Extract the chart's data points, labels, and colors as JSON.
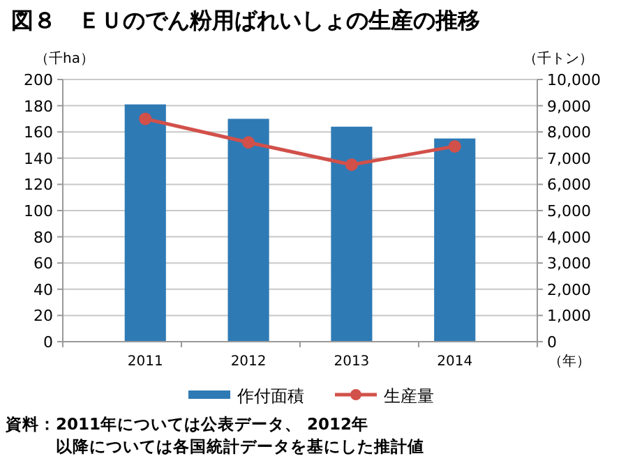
{
  "chart_data": {
    "type": "bar",
    "title": "図８　ＥＵのでん粉用ばれいしょの生産の推移",
    "xlabel": "（年）",
    "ylabel": "（千ha）",
    "y2label": "（千トン）",
    "categories": [
      "2011",
      "2012",
      "2013",
      "2014"
    ],
    "series": [
      {
        "name": "作付面積",
        "color": "#2e7ab5",
        "values": [
          181,
          170,
          164,
          155
        ]
      },
      {
        "name": "生産量",
        "type": "line",
        "axis": "y2",
        "color": "#d2504a",
        "marker": "circle",
        "values": [
          8500,
          7600,
          6750,
          7450
        ]
      }
    ],
    "ylim": [
      0,
      200
    ],
    "yticks": [
      0,
      20,
      40,
      60,
      80,
      100,
      120,
      140,
      160,
      180,
      200
    ],
    "y2lim": [
      0,
      10000
    ],
    "y2ticks": [
      {
        "value": 0,
        "label": "0"
      },
      {
        "value": 1000,
        "label": "1,000"
      },
      {
        "value": 2000,
        "label": "2,000"
      },
      {
        "value": 3000,
        "label": "3,000"
      },
      {
        "value": 4000,
        "label": "4,000"
      },
      {
        "value": 5000,
        "label": "5,000"
      },
      {
        "value": 6000,
        "label": "6,000"
      },
      {
        "value": 7000,
        "label": "7,000"
      },
      {
        "value": 8000,
        "label": "8,000"
      },
      {
        "value": 9000,
        "label": "9,000"
      },
      {
        "value": 10000,
        "label": "10,000"
      }
    ],
    "grid": "y",
    "legend": "bottom",
    "annotations": [
      "資料：2011年については公表データ、 2012年",
      "以降については各国統計データを基にした推計値"
    ]
  }
}
